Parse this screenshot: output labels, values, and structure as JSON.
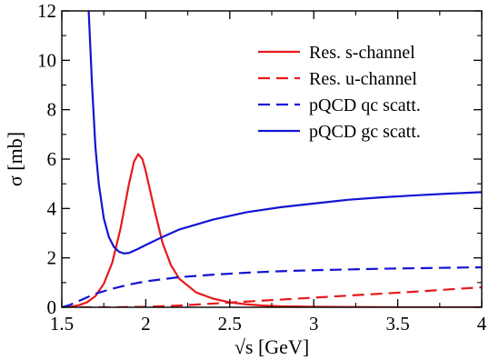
{
  "chart_data": {
    "type": "line",
    "xlabel": "√s [GeV]",
    "ylabel": "σ [mb]",
    "xlim": [
      1.5,
      4.0
    ],
    "ylim": [
      0,
      12
    ],
    "x_ticks": [
      1.5,
      2,
      2.5,
      3,
      3.5,
      4
    ],
    "x_tick_labels": [
      "1.5",
      "2",
      "2.5",
      "3",
      "3.5",
      "4"
    ],
    "y_ticks": [
      0,
      2,
      4,
      6,
      8,
      10,
      12
    ],
    "y_tick_labels": [
      "0",
      "2",
      "4",
      "6",
      "8",
      "10",
      "12"
    ],
    "grid": false,
    "legend_position": "top-right",
    "series": [
      {
        "name": "Res. s-channel",
        "color": "#e8191b",
        "dash": "solid",
        "points": [
          [
            1.5,
            0
          ],
          [
            1.55,
            0.02
          ],
          [
            1.6,
            0.08
          ],
          [
            1.65,
            0.2
          ],
          [
            1.7,
            0.45
          ],
          [
            1.75,
            0.95
          ],
          [
            1.8,
            1.8
          ],
          [
            1.85,
            3.2
          ],
          [
            1.9,
            5.0
          ],
          [
            1.93,
            5.9
          ],
          [
            1.955,
            6.2
          ],
          [
            1.98,
            6.0
          ],
          [
            2.0,
            5.5
          ],
          [
            2.05,
            4.0
          ],
          [
            2.1,
            2.6
          ],
          [
            2.15,
            1.7
          ],
          [
            2.2,
            1.15
          ],
          [
            2.3,
            0.6
          ],
          [
            2.4,
            0.35
          ],
          [
            2.5,
            0.2
          ],
          [
            2.6,
            0.12
          ],
          [
            2.7,
            0.07
          ],
          [
            2.8,
            0.04
          ],
          [
            3.0,
            0.02
          ],
          [
            3.5,
            0.0
          ],
          [
            4.0,
            0.0
          ]
        ]
      },
      {
        "name": "Res. u-channel",
        "color": "#e8191b",
        "dash": "dashed",
        "points": [
          [
            1.5,
            0
          ],
          [
            1.8,
            0
          ],
          [
            2.0,
            0.02
          ],
          [
            2.2,
            0.07
          ],
          [
            2.4,
            0.15
          ],
          [
            2.6,
            0.23
          ],
          [
            2.8,
            0.31
          ],
          [
            3.0,
            0.39
          ],
          [
            3.2,
            0.47
          ],
          [
            3.4,
            0.55
          ],
          [
            3.6,
            0.63
          ],
          [
            3.8,
            0.72
          ],
          [
            4.0,
            0.81
          ]
        ]
      },
      {
        "name": "pQCD qc scatt.",
        "color": "#1414d2",
        "dash": "dashed",
        "points": [
          [
            1.5,
            0
          ],
          [
            1.55,
            0.1
          ],
          [
            1.6,
            0.25
          ],
          [
            1.65,
            0.4
          ],
          [
            1.7,
            0.55
          ],
          [
            1.8,
            0.75
          ],
          [
            1.9,
            0.92
          ],
          [
            2.0,
            1.05
          ],
          [
            2.2,
            1.22
          ],
          [
            2.4,
            1.32
          ],
          [
            2.6,
            1.4
          ],
          [
            2.8,
            1.46
          ],
          [
            3.0,
            1.5
          ],
          [
            3.2,
            1.53
          ],
          [
            3.4,
            1.56
          ],
          [
            3.6,
            1.58
          ],
          [
            3.8,
            1.6
          ],
          [
            4.0,
            1.62
          ]
        ]
      },
      {
        "name": "pQCD gc scatt.",
        "color": "#1414d2",
        "dash": "solid",
        "points": [
          [
            1.66,
            12.0
          ],
          [
            1.68,
            9.0
          ],
          [
            1.7,
            6.5
          ],
          [
            1.72,
            5.0
          ],
          [
            1.75,
            3.6
          ],
          [
            1.78,
            2.85
          ],
          [
            1.81,
            2.45
          ],
          [
            1.84,
            2.25
          ],
          [
            1.87,
            2.18
          ],
          [
            1.9,
            2.2
          ],
          [
            1.95,
            2.35
          ],
          [
            2.0,
            2.52
          ],
          [
            2.1,
            2.85
          ],
          [
            2.2,
            3.15
          ],
          [
            2.4,
            3.55
          ],
          [
            2.6,
            3.85
          ],
          [
            2.8,
            4.05
          ],
          [
            3.0,
            4.2
          ],
          [
            3.2,
            4.35
          ],
          [
            3.4,
            4.45
          ],
          [
            3.6,
            4.53
          ],
          [
            3.8,
            4.6
          ],
          [
            4.0,
            4.66
          ]
        ]
      }
    ]
  }
}
